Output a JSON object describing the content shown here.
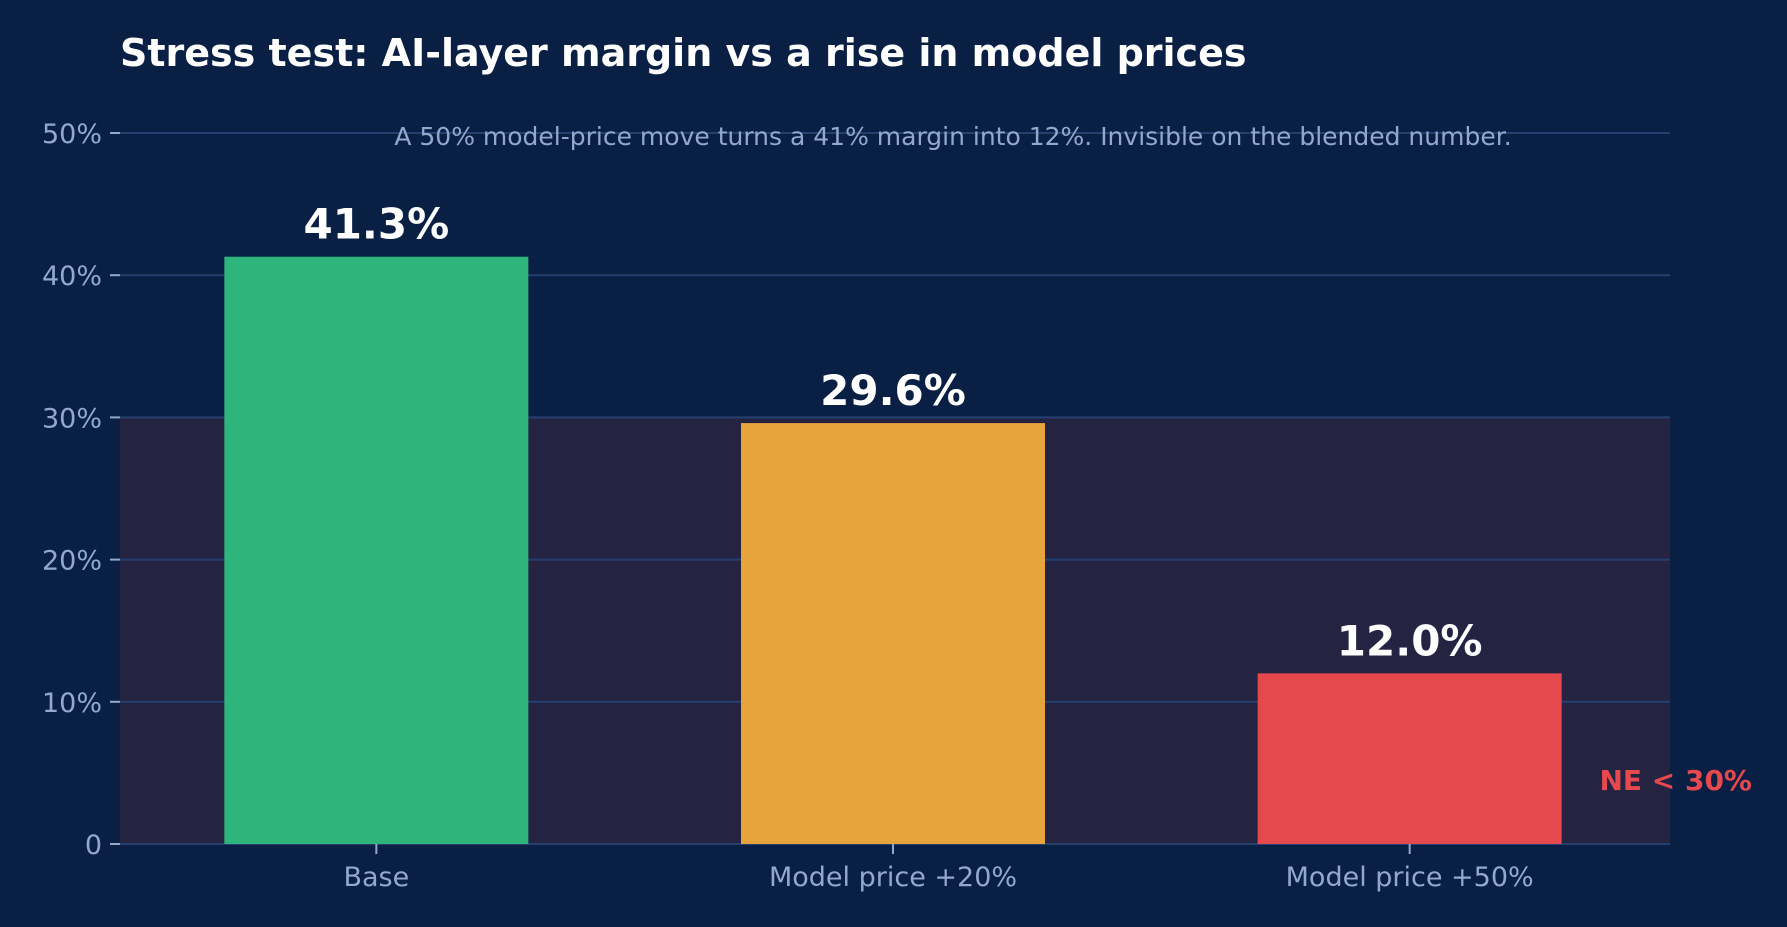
{
  "chart_data": {
    "type": "bar",
    "title": "Stress test: AI-layer margin vs a rise in model prices",
    "subtitle": "A 50% model-price move turns a 41% margin into 12%. Invisible on the blended number.",
    "xlabel": "",
    "ylabel": "",
    "categories": [
      "Base",
      "Model price +20%",
      "Model price +50%"
    ],
    "values": [
      41.3,
      29.6,
      12.0
    ],
    "value_labels": [
      "41.3%",
      "29.6%",
      "12.0%"
    ],
    "bar_colors": [
      "#2fb47c",
      "#e8a43c",
      "#e5484d"
    ],
    "ylim": [
      0,
      50
    ],
    "yticks": [
      0,
      10,
      20,
      30,
      40,
      50
    ],
    "ytick_labels": [
      "0",
      "10%",
      "20%",
      "30%",
      "40%",
      "50%"
    ],
    "grid": "horizontal",
    "threshold": {
      "value": 30,
      "label": "NE  < 30%",
      "color": "#e5484d",
      "shade_color": "#242442"
    },
    "colors": {
      "background": "#0a1f44",
      "grid": "#24406e",
      "text_muted": "#93a8cc",
      "text_main": "#ffffff"
    }
  }
}
